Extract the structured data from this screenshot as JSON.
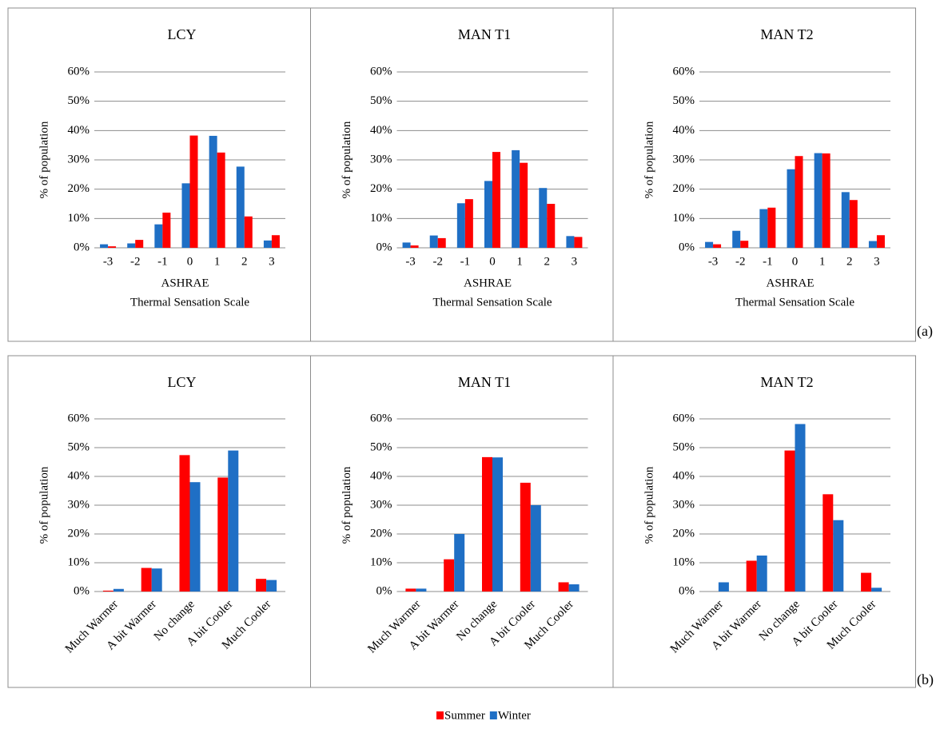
{
  "chart_data": [
    {
      "type": "bar",
      "title": "LCY",
      "y_label": "% of population",
      "x_label": [
        "ASHRAE",
        "Thermal Sensation Scale"
      ],
      "categories": [
        "-3",
        "-2",
        "-1",
        "0",
        "1",
        "2",
        "3"
      ],
      "series": [
        {
          "name": "Winter",
          "color": "#1f6fc5",
          "values": [
            1.2,
            1.5,
            8,
            22,
            38.2,
            27.7,
            2.5
          ]
        },
        {
          "name": "Summer",
          "color": "#ff0000",
          "values": [
            0.5,
            2.7,
            12,
            38.3,
            32.5,
            10.7,
            4.3
          ]
        }
      ],
      "ylim": [
        0,
        60
      ],
      "yticks": [
        {
          "value": 0,
          "label": "0%"
        },
        {
          "value": 10,
          "label": "10%"
        },
        {
          "value": 20,
          "label": "20%"
        },
        {
          "value": 30,
          "label": "30%"
        },
        {
          "value": 40,
          "label": "40%"
        },
        {
          "value": 50,
          "label": "50%"
        },
        {
          "value": 60,
          "label": "60%"
        }
      ],
      "grid": true
    },
    {
      "type": "bar",
      "title": "MAN T1",
      "y_label": "% of population",
      "x_label": [
        "ASHRAE",
        "Thermal Sensation Scale"
      ],
      "categories": [
        "-3",
        "-2",
        "-1",
        "0",
        "1",
        "2",
        "3"
      ],
      "series": [
        {
          "name": "Winter",
          "color": "#1f6fc5",
          "values": [
            1.8,
            4.2,
            15.2,
            22.8,
            33.3,
            20.4,
            4
          ]
        },
        {
          "name": "Summer",
          "color": "#ff0000",
          "values": [
            0.8,
            3.3,
            16.6,
            32.7,
            29,
            15,
            3.7
          ]
        }
      ],
      "ylim": [
        0,
        60
      ],
      "yticks": [
        {
          "value": 0,
          "label": "0%"
        },
        {
          "value": 10,
          "label": "10%"
        },
        {
          "value": 20,
          "label": "20%"
        },
        {
          "value": 30,
          "label": "30%"
        },
        {
          "value": 40,
          "label": "40%"
        },
        {
          "value": 50,
          "label": "50%"
        },
        {
          "value": 60,
          "label": "60%"
        }
      ],
      "grid": true
    },
    {
      "type": "bar",
      "title": "MAN T2",
      "y_label": "% of population",
      "x_label": [
        "ASHRAE",
        "Thermal Sensation Scale"
      ],
      "categories": [
        "-3",
        "-2",
        "-1",
        "0",
        "1",
        "2",
        "3"
      ],
      "series": [
        {
          "name": "Winter",
          "color": "#1f6fc5",
          "values": [
            2,
            5.8,
            13.2,
            26.8,
            32.3,
            19,
            2.3
          ]
        },
        {
          "name": "Summer",
          "color": "#ff0000",
          "values": [
            1.2,
            2.4,
            13.7,
            31.3,
            32.2,
            16.3,
            4.3
          ]
        }
      ],
      "ylim": [
        0,
        60
      ],
      "yticks": [
        {
          "value": 0,
          "label": "0%"
        },
        {
          "value": 10,
          "label": "10%"
        },
        {
          "value": 20,
          "label": "20%"
        },
        {
          "value": 30,
          "label": "30%"
        },
        {
          "value": 40,
          "label": "40%"
        },
        {
          "value": 50,
          "label": "50%"
        },
        {
          "value": 60,
          "label": "60%"
        }
      ],
      "grid": true
    },
    {
      "type": "bar",
      "title": "LCY",
      "y_label": "% of population",
      "rotate_labels": true,
      "categories": [
        "Much Warmer",
        "A bit Warmer",
        "No change",
        "A bit Cooler",
        "Much Cooler"
      ],
      "series": [
        {
          "name": "Summer",
          "color": "#ff0000",
          "values": [
            0.3,
            8.2,
            47.4,
            39.6,
            4.4
          ]
        },
        {
          "name": "Winter",
          "color": "#1f6fc5",
          "values": [
            0.9,
            8,
            38,
            49,
            4
          ]
        }
      ],
      "ylim": [
        0,
        60
      ],
      "yticks": [
        {
          "value": 0,
          "label": "0%"
        },
        {
          "value": 10,
          "label": "10%"
        },
        {
          "value": 20,
          "label": "20%"
        },
        {
          "value": 30,
          "label": "30%"
        },
        {
          "value": 40,
          "label": "40%"
        },
        {
          "value": 50,
          "label": "50%"
        },
        {
          "value": 60,
          "label": "60%"
        }
      ],
      "grid": true
    },
    {
      "type": "bar",
      "title": "MAN T1",
      "y_label": "% of population",
      "rotate_labels": true,
      "categories": [
        "Much Warmer",
        "A bit Warmer",
        "No change",
        "A bit Cooler",
        "Much Cooler"
      ],
      "series": [
        {
          "name": "Summer",
          "color": "#ff0000",
          "values": [
            1,
            11.2,
            46.7,
            37.8,
            3.2
          ]
        },
        {
          "name": "Winter",
          "color": "#1f6fc5",
          "values": [
            1,
            20,
            46.6,
            30,
            2.5
          ]
        }
      ],
      "ylim": [
        0,
        60
      ],
      "yticks": [
        {
          "value": 0,
          "label": "0%"
        },
        {
          "value": 10,
          "label": "10%"
        },
        {
          "value": 20,
          "label": "20%"
        },
        {
          "value": 30,
          "label": "30%"
        },
        {
          "value": 40,
          "label": "40%"
        },
        {
          "value": 50,
          "label": "50%"
        },
        {
          "value": 60,
          "label": "60%"
        }
      ],
      "grid": true
    },
    {
      "type": "bar",
      "title": "MAN T2",
      "y_label": "% of population",
      "rotate_labels": true,
      "categories": [
        "Much Warmer",
        "A bit Warmer",
        "No change",
        "A bit Cooler",
        "Much Cooler"
      ],
      "series": [
        {
          "name": "Summer",
          "color": "#ff0000",
          "values": [
            0,
            10.7,
            49,
            33.8,
            6.5
          ]
        },
        {
          "name": "Winter",
          "color": "#1f6fc5",
          "values": [
            3.2,
            12.5,
            58.2,
            24.8,
            1.3
          ]
        }
      ],
      "ylim": [
        0,
        60
      ],
      "yticks": [
        {
          "value": 0,
          "label": "0%"
        },
        {
          "value": 10,
          "label": "10%"
        },
        {
          "value": 20,
          "label": "20%"
        },
        {
          "value": 30,
          "label": "30%"
        },
        {
          "value": 40,
          "label": "40%"
        },
        {
          "value": 50,
          "label": "50%"
        },
        {
          "value": 60,
          "label": "60%"
        }
      ],
      "grid": true
    }
  ],
  "panel_labels": [
    "(a)",
    "(b)"
  ]
}
